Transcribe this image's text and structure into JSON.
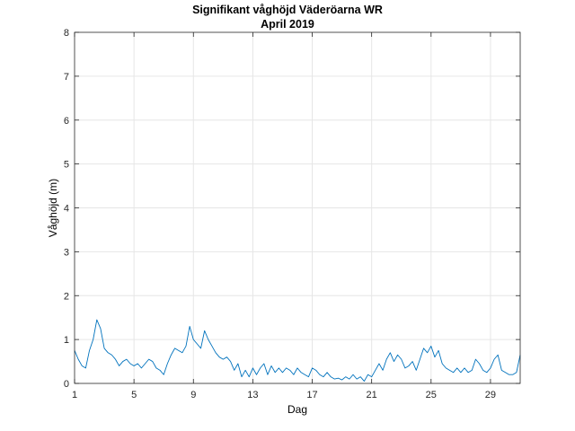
{
  "chart_data": {
    "type": "line",
    "title": "Signifikant våghöjd Väderöarna WR",
    "subtitle": "April 2019",
    "xlabel": "Dag",
    "ylabel": "Våghöjd (m)",
    "xlim": [
      1,
      31
    ],
    "ylim": [
      0,
      8
    ],
    "xticks": [
      1,
      5,
      9,
      13,
      17,
      21,
      25,
      29
    ],
    "yticks": [
      0,
      1,
      2,
      3,
      4,
      5,
      6,
      7,
      8
    ],
    "grid": true,
    "legend": "none",
    "series": [
      {
        "color": "#0072BD",
        "x": [
          1.0,
          1.25,
          1.5,
          1.75,
          2.0,
          2.25,
          2.5,
          2.75,
          3.0,
          3.25,
          3.5,
          3.75,
          4.0,
          4.25,
          4.5,
          4.75,
          5.0,
          5.25,
          5.5,
          5.75,
          6.0,
          6.25,
          6.5,
          6.75,
          7.0,
          7.25,
          7.5,
          7.75,
          8.0,
          8.25,
          8.5,
          8.75,
          9.0,
          9.25,
          9.5,
          9.75,
          10.0,
          10.25,
          10.5,
          10.75,
          11.0,
          11.25,
          11.5,
          11.75,
          12.0,
          12.25,
          12.5,
          12.75,
          13.0,
          13.25,
          13.5,
          13.75,
          14.0,
          14.25,
          14.5,
          14.75,
          15.0,
          15.25,
          15.5,
          15.75,
          16.0,
          16.25,
          16.5,
          16.75,
          17.0,
          17.25,
          17.5,
          17.75,
          18.0,
          18.25,
          18.5,
          18.75,
          19.0,
          19.25,
          19.5,
          19.75,
          20.0,
          20.25,
          20.5,
          20.75,
          21.0,
          21.25,
          21.5,
          21.75,
          22.0,
          22.25,
          22.5,
          22.75,
          23.0,
          23.25,
          23.5,
          23.75,
          24.0,
          24.25,
          24.5,
          24.75,
          25.0,
          25.25,
          25.5,
          25.75,
          26.0,
          26.25,
          26.5,
          26.75,
          27.0,
          27.25,
          27.5,
          27.75,
          28.0,
          28.25,
          28.5,
          28.75,
          29.0,
          29.25,
          29.5,
          29.75,
          30.0,
          30.25,
          30.5,
          30.75,
          31.0
        ],
        "values": [
          0.75,
          0.55,
          0.4,
          0.35,
          0.75,
          1.0,
          1.45,
          1.25,
          0.8,
          0.7,
          0.65,
          0.55,
          0.4,
          0.5,
          0.55,
          0.45,
          0.4,
          0.45,
          0.35,
          0.45,
          0.55,
          0.5,
          0.35,
          0.3,
          0.2,
          0.45,
          0.65,
          0.8,
          0.75,
          0.7,
          0.85,
          1.3,
          1.0,
          0.9,
          0.8,
          1.2,
          1.0,
          0.85,
          0.7,
          0.6,
          0.55,
          0.6,
          0.5,
          0.3,
          0.45,
          0.15,
          0.3,
          0.15,
          0.35,
          0.2,
          0.35,
          0.45,
          0.2,
          0.4,
          0.25,
          0.35,
          0.25,
          0.35,
          0.3,
          0.2,
          0.35,
          0.25,
          0.2,
          0.15,
          0.35,
          0.3,
          0.2,
          0.15,
          0.25,
          0.15,
          0.1,
          0.12,
          0.08,
          0.15,
          0.1,
          0.2,
          0.1,
          0.15,
          0.05,
          0.2,
          0.15,
          0.3,
          0.45,
          0.3,
          0.55,
          0.7,
          0.5,
          0.65,
          0.55,
          0.35,
          0.4,
          0.5,
          0.3,
          0.55,
          0.8,
          0.7,
          0.85,
          0.6,
          0.75,
          0.45,
          0.35,
          0.3,
          0.25,
          0.35,
          0.25,
          0.35,
          0.25,
          0.3,
          0.55,
          0.45,
          0.3,
          0.25,
          0.35,
          0.55,
          0.65,
          0.3,
          0.25,
          0.2,
          0.2,
          0.25,
          0.65
        ]
      }
    ]
  }
}
